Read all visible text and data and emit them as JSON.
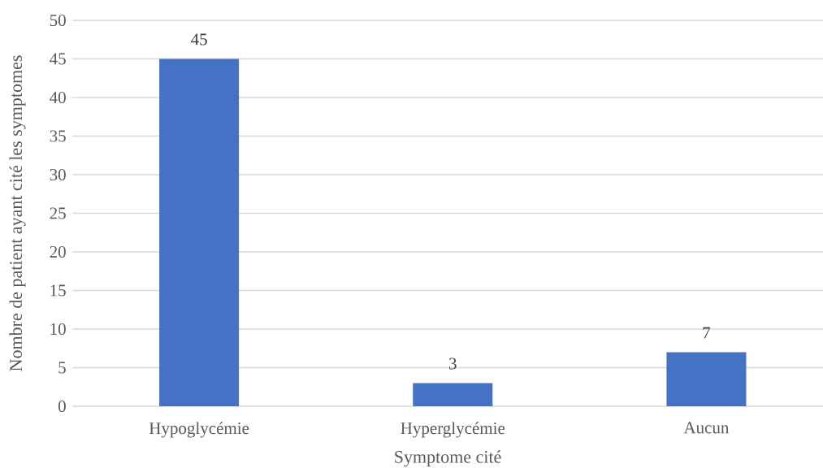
{
  "chart_data": {
    "type": "bar",
    "xlabel": "Symptome cité",
    "ylabel": "Nombre de patient ayant cité les symptomes",
    "categories": [
      "Hypoglycémie",
      "Hyperglycémie",
      "Aucun"
    ],
    "values": [
      45,
      3,
      7
    ],
    "color": "#4472c4",
    "ylim": [
      0,
      50
    ],
    "yticks": [
      0,
      5,
      10,
      15,
      20,
      25,
      30,
      35,
      40,
      45,
      50
    ],
    "grid": "y",
    "data_labels": true
  }
}
